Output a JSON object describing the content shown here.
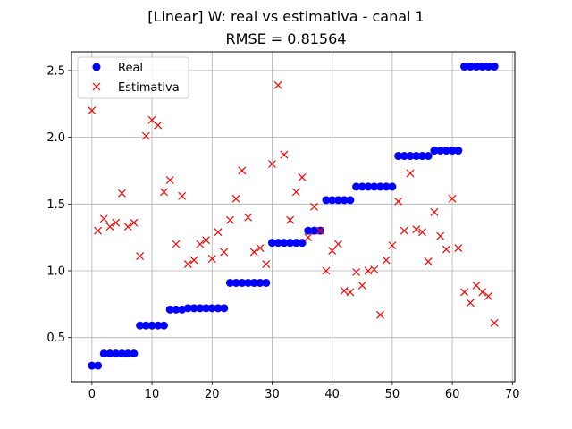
{
  "chart_data": {
    "type": "scatter",
    "title": "[Linear] W: real vs estimativa - canal 1",
    "subtitle": "RMSE = 0.81564",
    "xlabel": "",
    "ylabel": "",
    "xlim": [
      -3.4,
      70.4
    ],
    "ylim": [
      0.17,
      2.64
    ],
    "x_ticks": [
      0,
      10,
      20,
      30,
      40,
      50,
      60,
      70
    ],
    "y_ticks": [
      0.5,
      1.0,
      1.5,
      2.0,
      2.5
    ],
    "x_tick_labels": [
      "0",
      "10",
      "20",
      "30",
      "40",
      "50",
      "60",
      "70"
    ],
    "y_tick_labels": [
      "0.5",
      "1.0",
      "1.5",
      "2.0",
      "2.5"
    ],
    "grid": true,
    "legend_position": "top-left",
    "series": [
      {
        "name": "Real",
        "marker": "circle",
        "color": "#0000ff",
        "x": [
          0,
          1,
          2,
          3,
          4,
          5,
          6,
          7,
          8,
          9,
          10,
          11,
          12,
          13,
          14,
          15,
          16,
          17,
          18,
          19,
          20,
          21,
          22,
          23,
          24,
          25,
          26,
          27,
          28,
          29,
          30,
          31,
          32,
          33,
          34,
          35,
          36,
          37,
          38,
          39,
          40,
          41,
          42,
          43,
          44,
          45,
          46,
          47,
          48,
          49,
          50,
          51,
          52,
          53,
          54,
          55,
          56,
          57,
          58,
          59,
          60,
          61,
          62,
          63,
          64,
          65,
          66,
          67
        ],
        "y": [
          0.29,
          0.29,
          0.38,
          0.38,
          0.38,
          0.38,
          0.38,
          0.38,
          0.59,
          0.59,
          0.59,
          0.59,
          0.59,
          0.71,
          0.71,
          0.71,
          0.72,
          0.72,
          0.72,
          0.72,
          0.72,
          0.72,
          0.72,
          0.91,
          0.91,
          0.91,
          0.91,
          0.91,
          0.91,
          0.91,
          1.21,
          1.21,
          1.21,
          1.21,
          1.21,
          1.21,
          1.3,
          1.3,
          1.3,
          1.53,
          1.53,
          1.53,
          1.53,
          1.53,
          1.63,
          1.63,
          1.63,
          1.63,
          1.63,
          1.63,
          1.63,
          1.86,
          1.86,
          1.86,
          1.86,
          1.86,
          1.86,
          1.9,
          1.9,
          1.9,
          1.9,
          1.9,
          2.53,
          2.53,
          2.53,
          2.53,
          2.53,
          2.53
        ]
      },
      {
        "name": "Estimativa",
        "marker": "x",
        "color": "#ff0000",
        "x": [
          0,
          1,
          2,
          3,
          4,
          5,
          6,
          7,
          8,
          9,
          10,
          11,
          12,
          13,
          14,
          15,
          16,
          17,
          18,
          19,
          20,
          21,
          22,
          23,
          24,
          25,
          26,
          27,
          28,
          29,
          30,
          31,
          32,
          33,
          34,
          35,
          36,
          37,
          38,
          39,
          40,
          41,
          42,
          43,
          44,
          45,
          46,
          47,
          48,
          49,
          50,
          51,
          52,
          53,
          54,
          55,
          56,
          57,
          58,
          59,
          60,
          61,
          62,
          63,
          64,
          65,
          66,
          67
        ],
        "y": [
          2.2,
          1.3,
          1.39,
          1.33,
          1.36,
          1.58,
          1.33,
          1.36,
          1.11,
          2.01,
          2.13,
          2.09,
          1.59,
          1.68,
          1.2,
          1.56,
          1.05,
          1.08,
          1.2,
          1.23,
          1.09,
          1.29,
          1.14,
          1.38,
          1.54,
          1.75,
          1.4,
          1.14,
          1.17,
          1.05,
          1.8,
          2.39,
          1.87,
          1.38,
          1.59,
          1.7,
          1.25,
          1.48,
          1.3,
          1.0,
          1.15,
          1.2,
          0.85,
          0.84,
          0.99,
          0.89,
          1.0,
          1.01,
          0.67,
          1.08,
          1.19,
          1.52,
          1.3,
          1.73,
          1.31,
          1.29,
          1.07,
          1.44,
          1.26,
          1.16,
          1.54,
          1.17,
          0.84,
          0.76,
          0.89,
          0.84,
          0.81,
          0.61
        ]
      }
    ]
  }
}
